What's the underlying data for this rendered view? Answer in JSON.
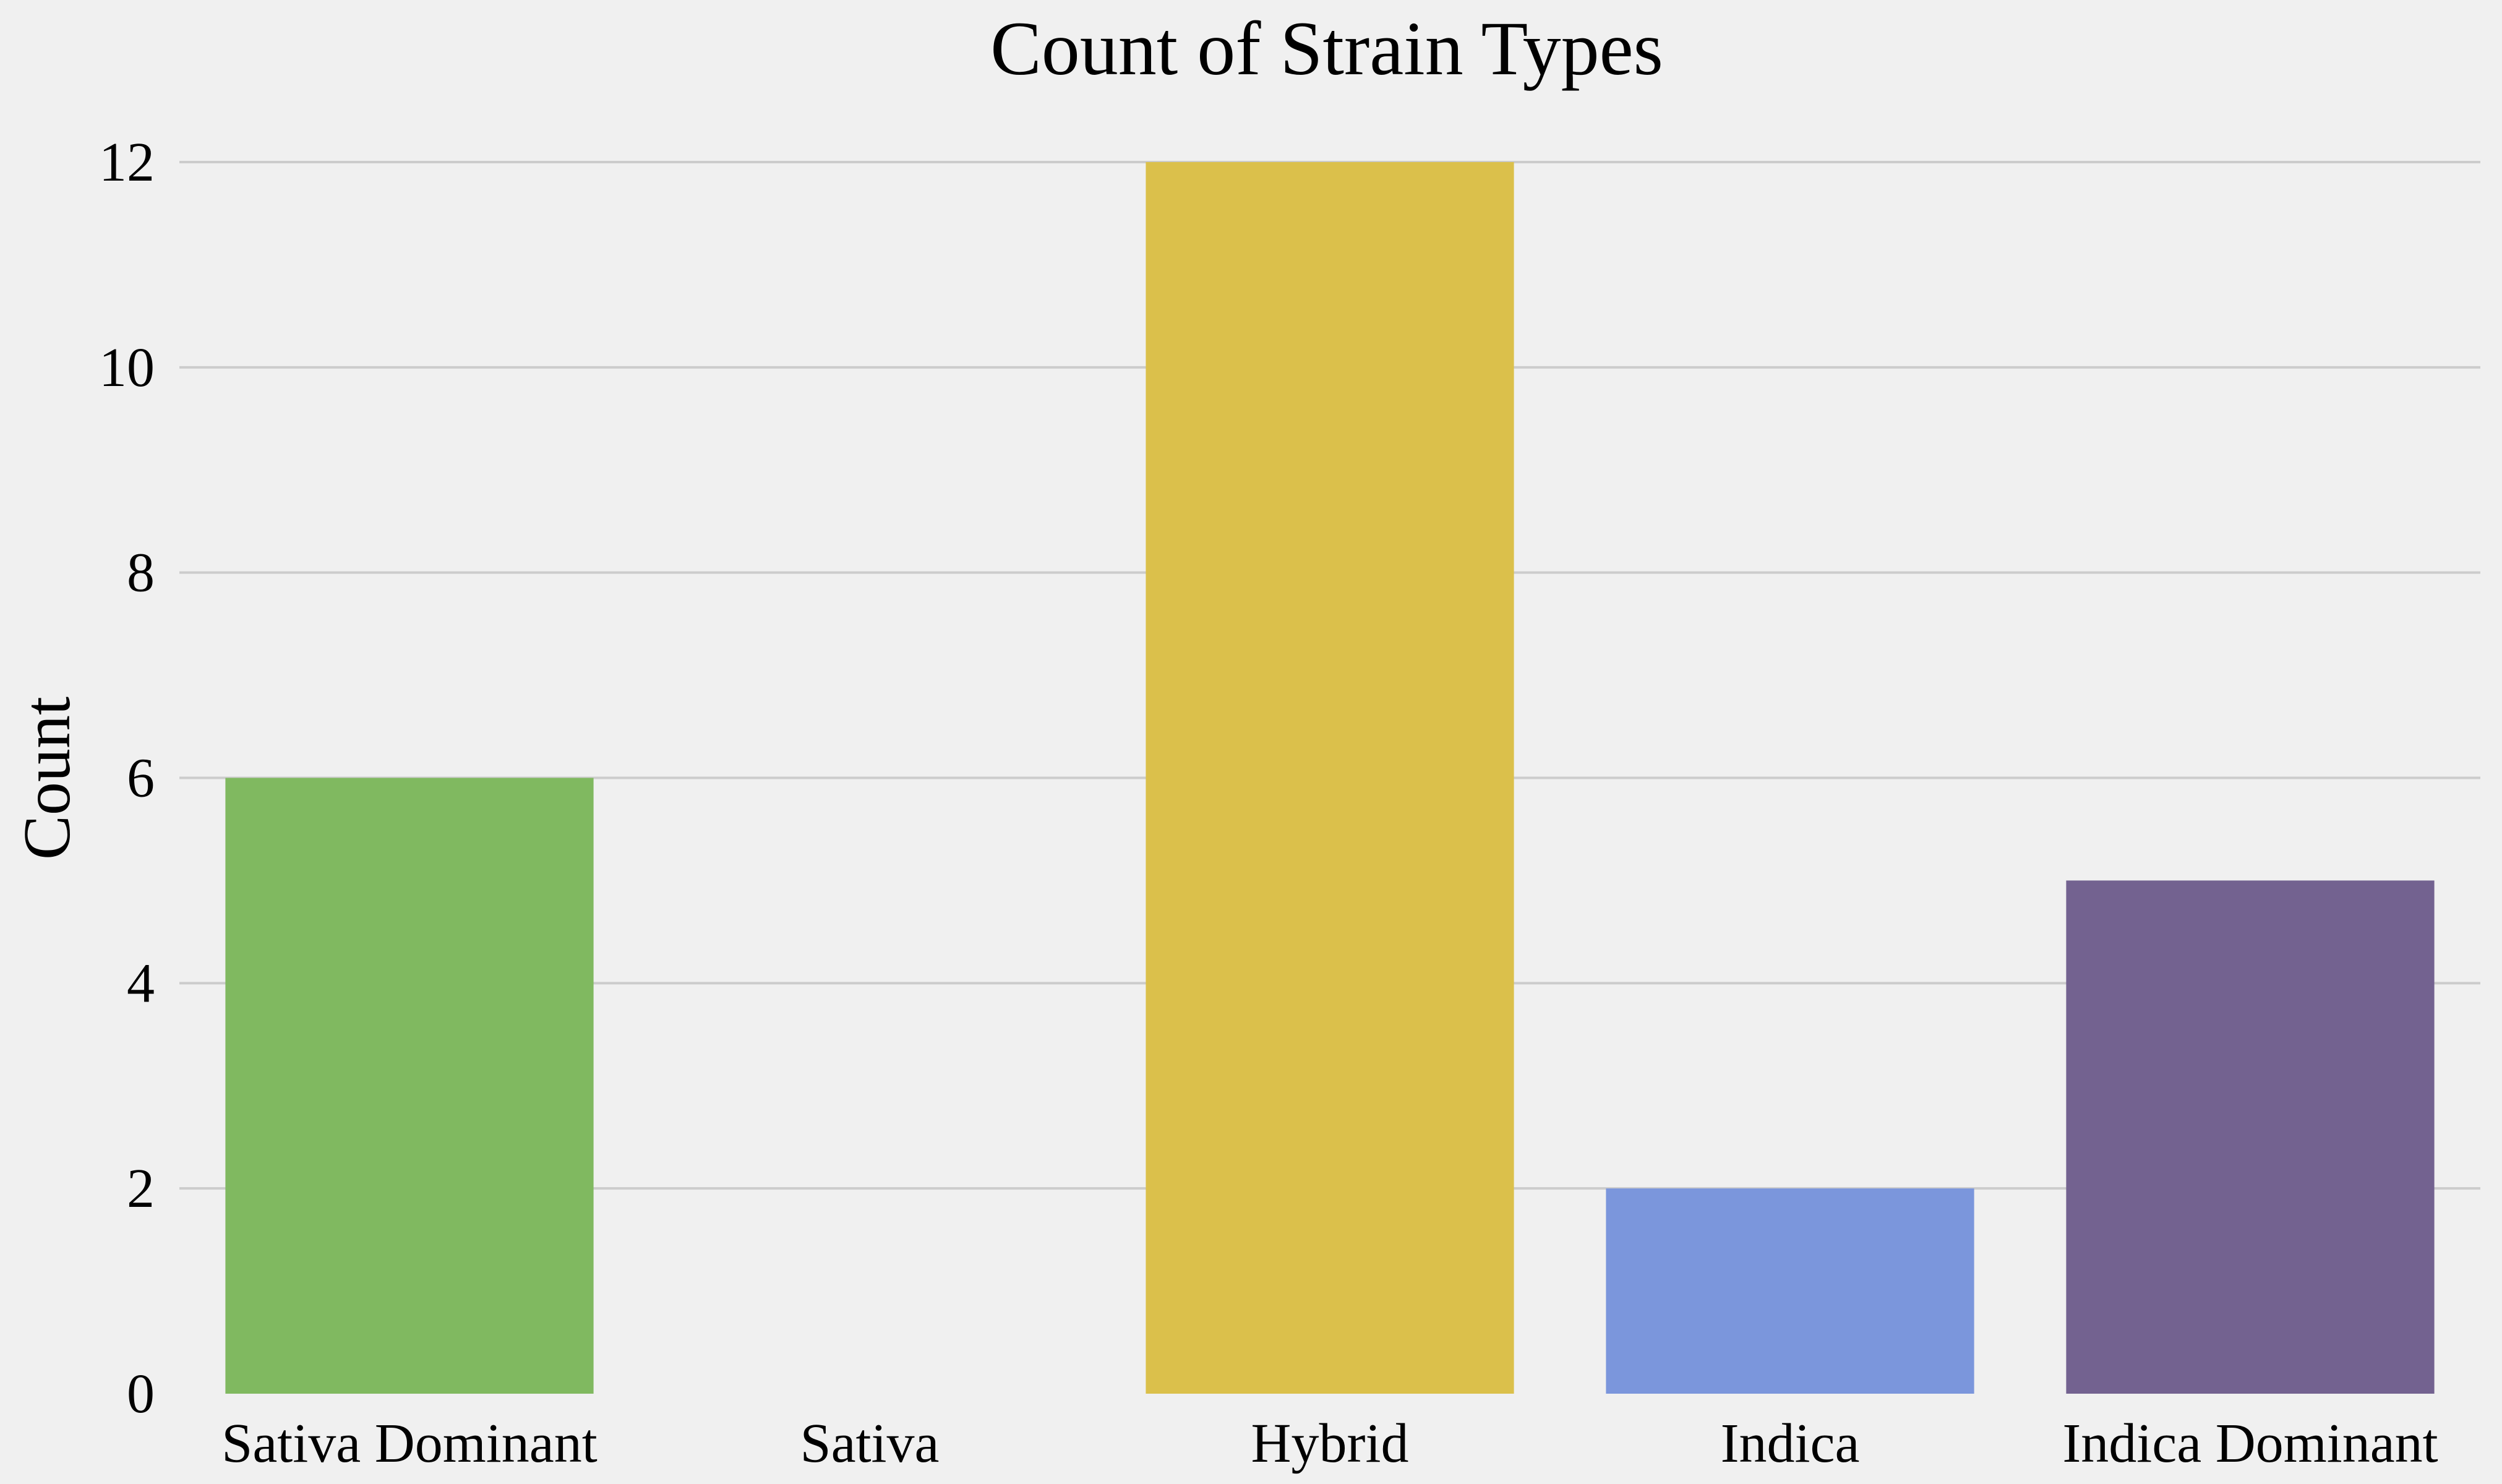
{
  "chart_data": {
    "type": "bar",
    "title": "Count of Strain Types",
    "xlabel": "",
    "ylabel": "Count",
    "categories": [
      "Sativa Dominant",
      "Sativa",
      "Hybrid",
      "Indica",
      "Indica Dominant"
    ],
    "values": [
      6,
      0,
      12,
      2,
      5
    ],
    "colors": [
      "#80b960",
      "#e2c24d",
      "#dbc04b",
      "#7b96dc",
      "#736290"
    ],
    "yticks": [
      0,
      2,
      4,
      6,
      8,
      10,
      12
    ],
    "ylim": [
      0,
      12
    ],
    "grid": true,
    "grid_color": "#cccccc",
    "background": "#f0f0f0",
    "legend": "none"
  }
}
